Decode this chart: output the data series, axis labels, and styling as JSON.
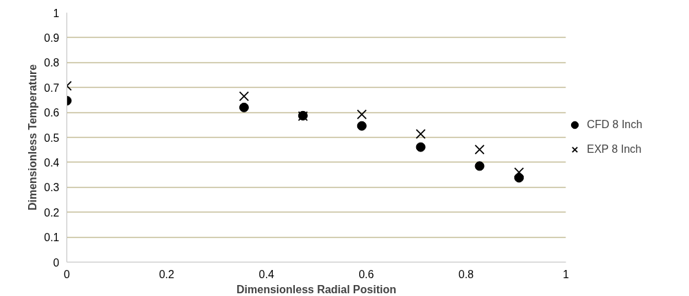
{
  "chart_data": {
    "type": "scatter",
    "xlabel": "Dimensionless Radial Position",
    "ylabel": "Dimensionless Temperature",
    "x": [
      0,
      0.355,
      0.473,
      0.591,
      0.709,
      0.827,
      0.906
    ],
    "series": [
      {
        "name": "CFD 8 Inch",
        "color": "#000000",
        "marker": "circle",
        "values": [
          0.647,
          0.62,
          0.587,
          0.546,
          0.461,
          0.385,
          0.338
        ]
      },
      {
        "name": "EXP 8 Inch",
        "color": "#000000",
        "marker": "cross",
        "values": [
          0.707,
          0.665,
          0.585,
          0.592,
          0.514,
          0.451,
          0.36
        ]
      }
    ],
    "xlim": [
      0,
      1
    ],
    "xticks": [
      0,
      0.2,
      0.4,
      0.6,
      0.8,
      1
    ],
    "ylim": [
      0,
      1
    ],
    "yticks": [
      0,
      0.1,
      0.2,
      0.3,
      0.4,
      0.5,
      0.6,
      0.7,
      0.8,
      0.9,
      1
    ],
    "grid": "y",
    "legend": "right"
  }
}
